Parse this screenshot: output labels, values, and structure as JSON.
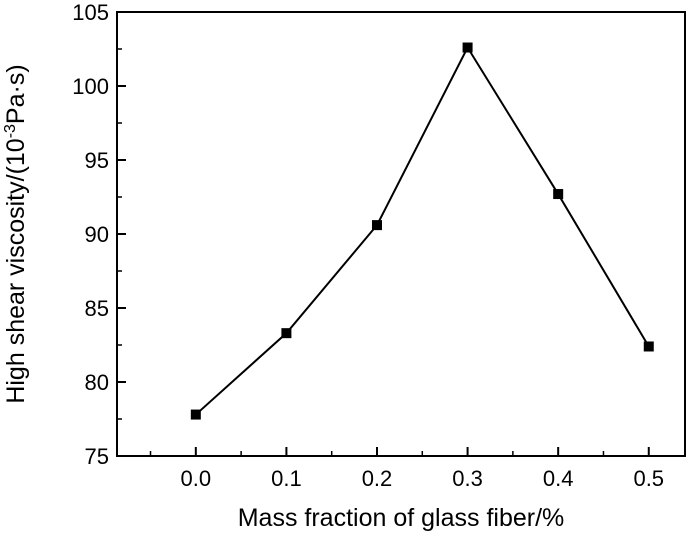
{
  "chart_data": {
    "type": "line",
    "title": "",
    "xlabel": "Mass fraction of glass fiber/%",
    "ylabel_parts": {
      "main": "High shear viscosity/(10",
      "sup": "-3",
      "tail": "Pa·s)"
    },
    "x": [
      0.0,
      0.1,
      0.2,
      0.3,
      0.4,
      0.5
    ],
    "x_tick_labels": [
      "0.0",
      "0.1",
      "0.2",
      "0.3",
      "0.4",
      "0.5"
    ],
    "y_tick_values": [
      75,
      80,
      85,
      90,
      95,
      100,
      105
    ],
    "y_tick_labels": [
      "75",
      "80",
      "85",
      "90",
      "95",
      "100",
      "105"
    ],
    "xlim": [
      -0.087,
      0.54
    ],
    "ylim": [
      75,
      105
    ],
    "grid": false,
    "legend": "none",
    "series": [
      {
        "values": [
          77.8,
          83.3,
          90.6,
          102.6,
          92.7,
          82.4
        ]
      }
    ],
    "colors": {
      "line": "#000000",
      "marker": "#000000"
    }
  }
}
